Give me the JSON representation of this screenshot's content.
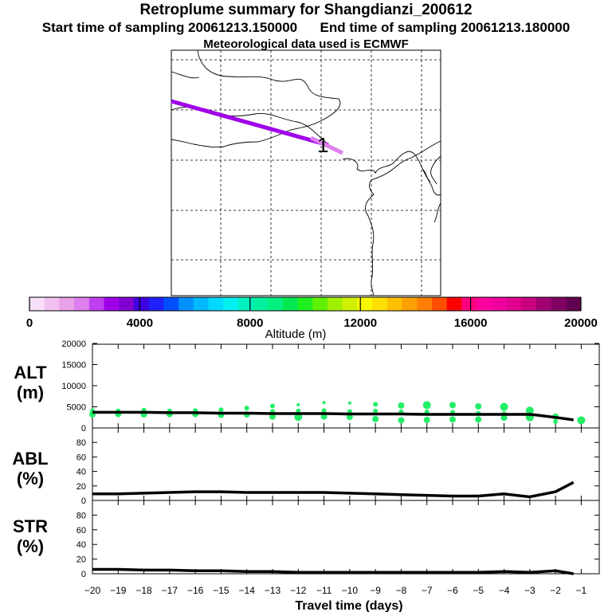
{
  "header": {
    "title": "Retroplume summary for Shangdianzi_200612",
    "start_label": "Start time of sampling 20061213.150000",
    "end_label": "End time of sampling 20061213.180000",
    "met_label": "Meteorological data used is ECMWF"
  },
  "map": {
    "release_marker_label": "1"
  },
  "colorbar": {
    "ticks": [
      "0",
      "4000",
      "8000",
      "12000",
      "16000",
      "20000"
    ],
    "label": "Altitude  (m)",
    "colors": [
      "#f8e0f8",
      "#f0c0f0",
      "#e8a0e8",
      "#e080f0",
      "#c040f0",
      "#a000e8",
      "#8000d0",
      "#4000e0",
      "#2020ff",
      "#0050ff",
      "#0090ff",
      "#00b8ff",
      "#00d8ff",
      "#00f0f0",
      "#00f0c0",
      "#00f0a0",
      "#00f080",
      "#00e850",
      "#20f020",
      "#60f000",
      "#a0f000",
      "#d0f000",
      "#f8f800",
      "#ffe000",
      "#ffc000",
      "#ffa000",
      "#ff8000",
      "#ff5000",
      "#ff0000",
      "#ff0080",
      "#ff00a0",
      "#f000a0",
      "#e00090",
      "#c80080",
      "#a00070",
      "#800060",
      "#600050"
    ]
  },
  "chart_data": [
    {
      "type": "line",
      "panel": "altitude",
      "ylabel": "ALT\n(m)",
      "ylabel_lines": [
        "ALT",
        "(m)"
      ],
      "ylim": [
        0,
        20000
      ],
      "yticks": [
        "0",
        "5000",
        "10000",
        "15000",
        "20000"
      ],
      "series": [
        {
          "name": "mean altitude",
          "x": [
            -20,
            -19,
            -18,
            -17,
            -16,
            -15,
            -14,
            -13,
            -12,
            -11,
            -10,
            -9,
            -8,
            -7,
            -6,
            -5,
            -4,
            -3,
            -2.8,
            -2,
            -1.3
          ],
          "values": [
            3700,
            3700,
            3700,
            3600,
            3600,
            3500,
            3500,
            3400,
            3400,
            3400,
            3300,
            3300,
            3300,
            3200,
            3200,
            3200,
            3200,
            3200,
            3100,
            2500,
            1900
          ]
        },
        {
          "name": "plume clusters",
          "points": [
            {
              "x": -20,
              "y": 3200,
              "r": 4
            },
            {
              "x": -20,
              "y": 4000,
              "r": 3
            },
            {
              "x": -19,
              "y": 3300,
              "r": 4
            },
            {
              "x": -19,
              "y": 4000,
              "r": 3
            },
            {
              "x": -18,
              "y": 3200,
              "r": 4
            },
            {
              "x": -18,
              "y": 4200,
              "r": 3
            },
            {
              "x": -17,
              "y": 3300,
              "r": 4
            },
            {
              "x": -17,
              "y": 4000,
              "r": 3
            },
            {
              "x": -16,
              "y": 3300,
              "r": 4
            },
            {
              "x": -16,
              "y": 4100,
              "r": 3
            },
            {
              "x": -15,
              "y": 3100,
              "r": 4
            },
            {
              "x": -15,
              "y": 4300,
              "r": 3
            },
            {
              "x": -14,
              "y": 3200,
              "r": 4
            },
            {
              "x": -14,
              "y": 4700,
              "r": 3
            },
            {
              "x": -13,
              "y": 2700,
              "r": 4
            },
            {
              "x": -13,
              "y": 5200,
              "r": 3
            },
            {
              "x": -13,
              "y": 3900,
              "r": 3
            },
            {
              "x": -12,
              "y": 2600,
              "r": 5
            },
            {
              "x": -12,
              "y": 5500,
              "r": 2
            },
            {
              "x": -12,
              "y": 4000,
              "r": 3
            },
            {
              "x": -11,
              "y": 2700,
              "r": 4
            },
            {
              "x": -11,
              "y": 6000,
              "r": 2
            },
            {
              "x": -11,
              "y": 4100,
              "r": 3
            },
            {
              "x": -10,
              "y": 2600,
              "r": 4
            },
            {
              "x": -10,
              "y": 5900,
              "r": 2
            },
            {
              "x": -10,
              "y": 3900,
              "r": 3
            },
            {
              "x": -9,
              "y": 2100,
              "r": 4
            },
            {
              "x": -9,
              "y": 5600,
              "r": 3
            },
            {
              "x": -9,
              "y": 4000,
              "r": 3
            },
            {
              "x": -8,
              "y": 1800,
              "r": 4
            },
            {
              "x": -8,
              "y": 5300,
              "r": 4
            },
            {
              "x": -8,
              "y": 3800,
              "r": 3
            },
            {
              "x": -7,
              "y": 1900,
              "r": 4
            },
            {
              "x": -7,
              "y": 5400,
              "r": 5
            },
            {
              "x": -7,
              "y": 3800,
              "r": 3
            },
            {
              "x": -6,
              "y": 2000,
              "r": 4
            },
            {
              "x": -6,
              "y": 5400,
              "r": 4
            },
            {
              "x": -6,
              "y": 3700,
              "r": 3
            },
            {
              "x": -5,
              "y": 2000,
              "r": 4
            },
            {
              "x": -5,
              "y": 5100,
              "r": 4
            },
            {
              "x": -5,
              "y": 3500,
              "r": 3
            },
            {
              "x": -4,
              "y": 2400,
              "r": 4
            },
            {
              "x": -4,
              "y": 5000,
              "r": 5
            },
            {
              "x": -4,
              "y": 3400,
              "r": 3
            },
            {
              "x": -3,
              "y": 2500,
              "r": 5
            },
            {
              "x": -3,
              "y": 4100,
              "r": 5
            },
            {
              "x": -3,
              "y": 3000,
              "r": 4
            },
            {
              "x": -2,
              "y": 2700,
              "r": 4
            },
            {
              "x": -2,
              "y": 1500,
              "r": 3
            },
            {
              "x": -1,
              "y": 1800,
              "r": 5
            }
          ]
        }
      ]
    },
    {
      "type": "line",
      "panel": "abl",
      "ylabel": "ABL\n(%)",
      "ylabel_lines": [
        "ABL",
        "(%)"
      ],
      "ylim": [
        0,
        100
      ],
      "yticks": [
        "0",
        "20",
        "40",
        "60",
        "80"
      ],
      "x": [
        -20,
        -19,
        -18,
        -17,
        -16,
        -15,
        -14,
        -13,
        -12,
        -11,
        -10,
        -9,
        -8,
        -7,
        -6,
        -5,
        -4,
        -3,
        -2,
        -1.3
      ],
      "values": [
        9,
        9,
        10,
        11,
        12,
        12,
        11,
        11,
        11,
        11,
        10,
        9,
        8,
        7,
        6,
        6,
        9,
        5,
        12,
        25
      ]
    },
    {
      "type": "line",
      "panel": "str",
      "ylabel": "STR\n(%)",
      "ylabel_lines": [
        "STR",
        "(%)"
      ],
      "ylim": [
        0,
        100
      ],
      "yticks": [
        "0",
        "20",
        "40",
        "60",
        "80"
      ],
      "x": [
        -20,
        -19,
        -18,
        -17,
        -16,
        -15,
        -14,
        -13,
        -12,
        -11,
        -10,
        -9,
        -8,
        -7,
        -6,
        -5,
        -4,
        -3,
        -2,
        -1.3
      ],
      "values": [
        6,
        6,
        5,
        5,
        4,
        4,
        3,
        3,
        2,
        2,
        2,
        2,
        2,
        2,
        2,
        2,
        3,
        2,
        4,
        0
      ],
      "xlabel": "Travel time (days)",
      "xlim": [
        -20,
        -0.3
      ],
      "xticks": [
        "−20",
        "−19",
        "−18",
        "−17",
        "−16",
        "−15",
        "−14",
        "−13",
        "−12",
        "−11",
        "−10",
        "−9",
        "−8",
        "−7",
        "−6",
        "−5",
        "−4",
        "−3",
        "−2",
        "−1"
      ]
    }
  ]
}
